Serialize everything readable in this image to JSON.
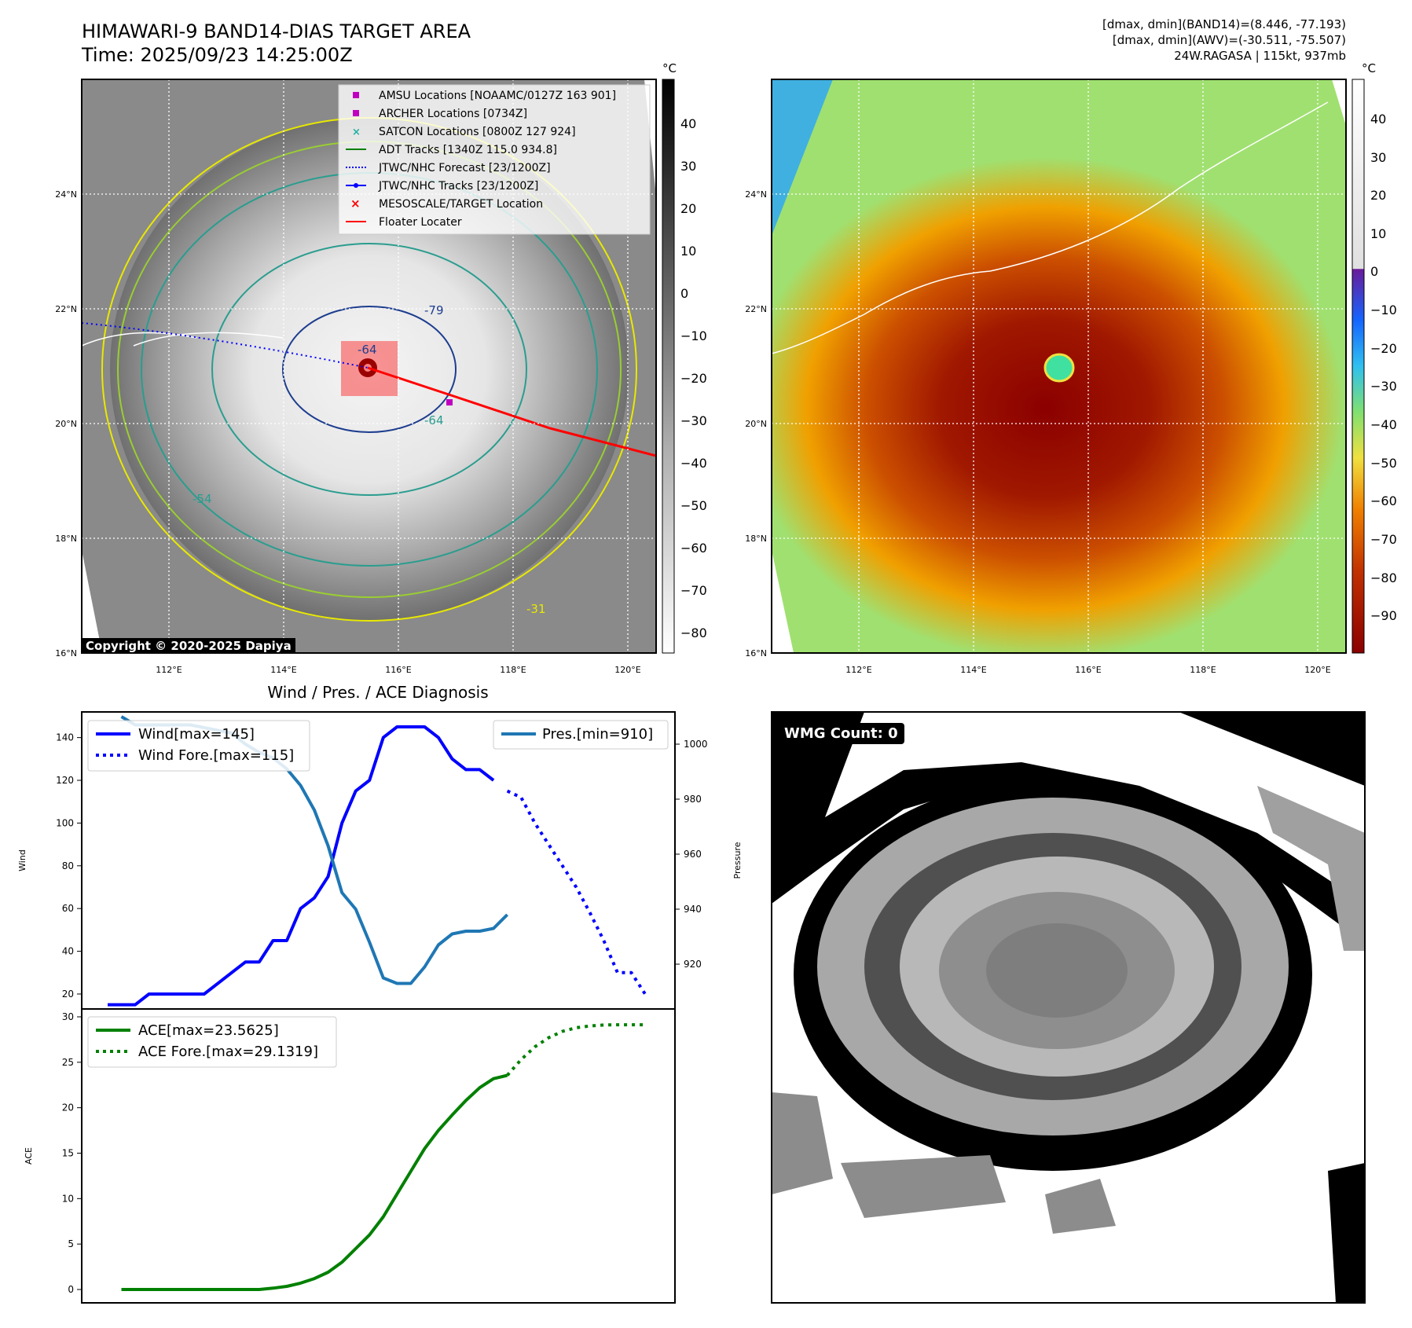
{
  "header": {
    "title_line1": "HIMAWARI-9 BAND14-DIAS TARGET AREA",
    "title_line2": "Time: 2025/09/23 14:25:00Z",
    "stats_line1": "[dmax, dmin](BAND14)=(8.446, -77.193)",
    "stats_line2": "[dmax, dmin](AWV)=(-30.511, -75.507)",
    "stats_line3": "24W.RAGASA | 115kt, 937mb"
  },
  "map": {
    "lat_labels": [
      "24°N",
      "22°N",
      "20°N",
      "18°N",
      "16°N"
    ],
    "lon_labels": [
      "112°E",
      "114°E",
      "116°E",
      "118°E",
      "120°E"
    ],
    "copyright": "Copyright © 2020-2025 Dapiya",
    "contour_labels": [
      "-64",
      "-54",
      "-31",
      "-79"
    ],
    "legend": [
      {
        "label": "AMSU Locations [NOAAMC/0127Z 163 901]",
        "marker": "square",
        "color": "#c000c0"
      },
      {
        "label": "ARCHER Locations [0734Z]",
        "marker": "square",
        "color": "#c000c0"
      },
      {
        "label": "SATCON Locations [0800Z 127 924]",
        "marker": "x",
        "color": "#20b0a0"
      },
      {
        "label": "ADT Tracks [1340Z 115.0 934.8]",
        "marker": "line",
        "color": "#008000"
      },
      {
        "label": "JTWC/NHC Forecast [23/1200Z]",
        "marker": "dotted",
        "color": "#0000ff"
      },
      {
        "label": "JTWC/NHC Tracks [23/1200Z]",
        "marker": "line-dot",
        "color": "#0000ff"
      },
      {
        "label": "MESOSCALE/TARGET Location",
        "marker": "x",
        "color": "#ff0000"
      },
      {
        "label": "Floater Locater",
        "marker": "line",
        "color": "#ff0000"
      }
    ],
    "gray_colorbar": {
      "unit": "°C",
      "ticks": [
        "40",
        "30",
        "20",
        "10",
        "0",
        "−10",
        "−20",
        "−30",
        "−40",
        "−50",
        "−60",
        "−70",
        "−80"
      ]
    },
    "color_colorbar": {
      "unit": "°C",
      "ticks": [
        "40",
        "30",
        "20",
        "10",
        "0",
        "−10",
        "−20",
        "−30",
        "−40",
        "−50",
        "−60",
        "−70",
        "−80",
        "−90"
      ]
    }
  },
  "wmg": {
    "label": "WMG Count: 0"
  },
  "chart_data": [
    {
      "type": "line",
      "title": "Wind / Pres. / ACE Diagnosis",
      "ylabel": "Wind",
      "y2label": "Pressure",
      "ylim": [
        13,
        152
      ],
      "y2lim": [
        910,
        1010
      ],
      "yticks": [
        20,
        40,
        60,
        80,
        100,
        120,
        140
      ],
      "y2ticks": [
        920,
        940,
        960,
        980,
        1000
      ],
      "legend_left": [
        "Wind[max=145]",
        "Wind Fore.[max=115]"
      ],
      "legend_right": [
        "Pres.[min=910]"
      ],
      "series": [
        {
          "name": "Wind[max=145]",
          "color": "#0000ff",
          "style": "solid",
          "axis": "left",
          "x": [
            0,
            1,
            2,
            3,
            4,
            5,
            6,
            7,
            8,
            9,
            10,
            11,
            12,
            13,
            14,
            15,
            16,
            17,
            18,
            19,
            20,
            21,
            22,
            23,
            24,
            25,
            26,
            27,
            28
          ],
          "values": [
            15,
            15,
            15,
            20,
            20,
            20,
            20,
            20,
            25,
            30,
            35,
            35,
            45,
            45,
            60,
            65,
            75,
            100,
            115,
            120,
            140,
            145,
            145,
            145,
            140,
            130,
            125,
            125,
            120
          ]
        },
        {
          "name": "Wind Fore.[max=115]",
          "color": "#0000ff",
          "style": "dotted",
          "axis": "left",
          "x": [
            29,
            30,
            31,
            32,
            33,
            34,
            35,
            36,
            37,
            38,
            39
          ],
          "values": [
            115,
            112,
            100,
            90,
            80,
            70,
            58,
            45,
            30,
            30,
            20
          ]
        },
        {
          "name": "Pres.[min=910]",
          "color": "#1f77b4",
          "style": "solid",
          "axis": "right",
          "x": [
            1,
            2,
            3,
            4,
            5,
            6,
            7,
            8,
            9,
            10,
            11,
            12,
            13,
            14,
            15,
            16,
            17,
            18,
            19,
            20,
            21,
            22,
            23,
            24,
            25,
            26,
            27,
            28,
            29
          ],
          "values": [
            1010,
            1007,
            1007,
            1007,
            1007,
            1007,
            1006,
            1005,
            1004,
            1000,
            997,
            995,
            991,
            985,
            976,
            963,
            946,
            940,
            928,
            915,
            913,
            913,
            919,
            927,
            931,
            932,
            932,
            933,
            938
          ]
        }
      ]
    },
    {
      "type": "line",
      "ylabel": "ACE",
      "ylim": [
        -1,
        30
      ],
      "yticks": [
        0,
        5,
        10,
        15,
        20,
        25,
        30
      ],
      "series": [
        {
          "name": "ACE[max=23.5625]",
          "color": "#008000",
          "style": "solid",
          "x": [
            1,
            2,
            3,
            4,
            5,
            6,
            7,
            8,
            9,
            10,
            11,
            12,
            13,
            14,
            15,
            16,
            17,
            18,
            19,
            20,
            21,
            22,
            23,
            24,
            25,
            26,
            27,
            28,
            29
          ],
          "values": [
            0,
            0,
            0,
            0,
            0,
            0,
            0,
            0,
            0,
            0,
            0,
            0.15,
            0.35,
            0.7,
            1.2,
            1.9,
            3.0,
            4.5,
            6.0,
            8.0,
            10.5,
            13.0,
            15.5,
            17.5,
            19.2,
            20.8,
            22.2,
            23.2,
            23.56
          ]
        },
        {
          "name": "ACE Fore.[max=29.1319]",
          "color": "#008000",
          "style": "dotted",
          "x": [
            29,
            30,
            31,
            32,
            33,
            34,
            35,
            36,
            37,
            38,
            39
          ],
          "values": [
            23.56,
            25.3,
            26.7,
            27.7,
            28.4,
            28.8,
            29.0,
            29.1,
            29.13,
            29.13,
            29.13
          ]
        }
      ]
    }
  ]
}
